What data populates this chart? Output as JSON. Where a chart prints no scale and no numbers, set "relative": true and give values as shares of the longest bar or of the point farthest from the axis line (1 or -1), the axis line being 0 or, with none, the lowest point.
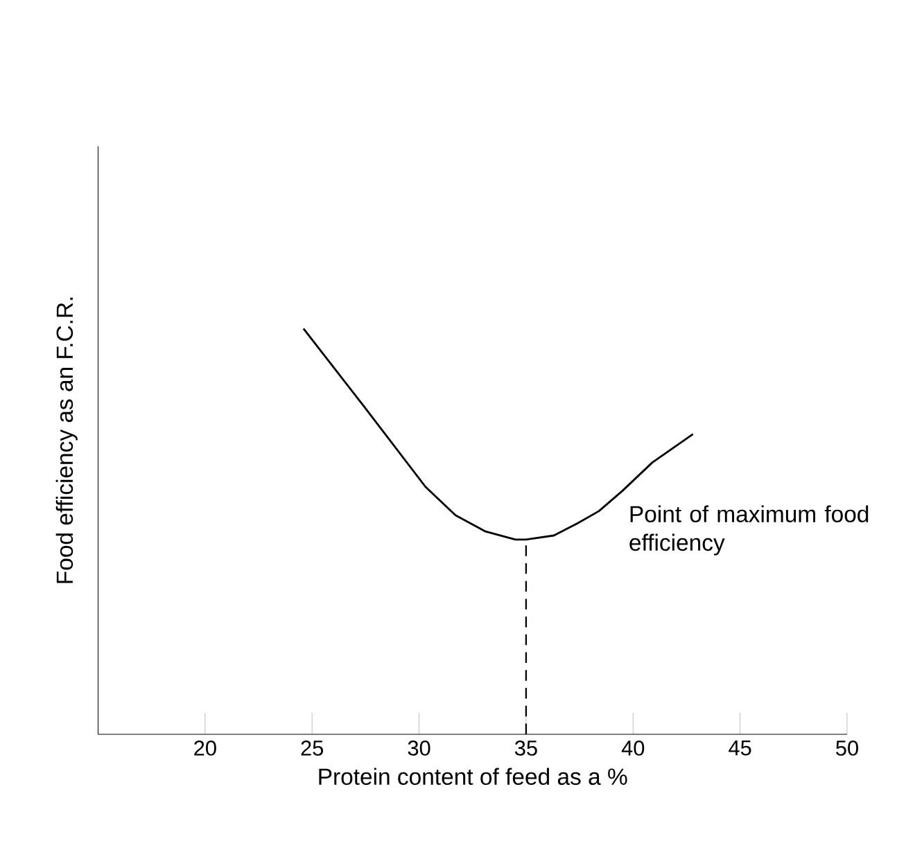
{
  "chart_data": {
    "type": "line",
    "xlabel": "Protein content of feed as a %",
    "ylabel": "Food efficiency as an F.C.R.",
    "relative": true,
    "x": [
      24.6,
      27.4,
      30.3,
      31.7,
      33.1,
      34.5,
      35.0,
      36.3,
      37.4,
      38.4,
      39.5,
      40.9,
      42.8
    ],
    "series": [
      {
        "color": "#000000",
        "values": [
          1,
          0.81,
          0.61,
          0.54,
          0.5,
          0.48,
          0.48,
          0.49,
          0.52,
          0.55,
          0.6,
          0.67,
          0.74
        ]
      }
    ],
    "xlim": [
      15,
      50
    ],
    "xticks": [
      20,
      25,
      30,
      35,
      40,
      45,
      50
    ],
    "ref_lines": [
      {
        "axis": "x",
        "value": 35,
        "line_style": "dashed"
      }
    ],
    "annotations": [
      "Point of maximum food efficiency"
    ],
    "grid": false,
    "marker": "none",
    "line_style": "solid"
  }
}
